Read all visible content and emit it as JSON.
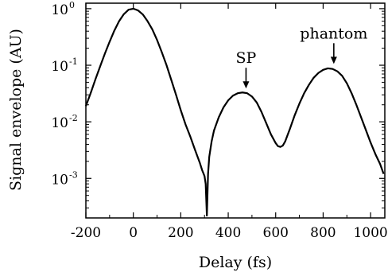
{
  "chart_data": {
    "type": "line",
    "xlabel": "Delay (fs)",
    "ylabel": "Signal envelope (AU)",
    "xlim": [
      -200,
      1060
    ],
    "ylim": [
      0.0002,
      1.25
    ],
    "yscale": "log",
    "grid": false,
    "legend": "none",
    "line_color": "#000000",
    "x_ticks": [
      {
        "value": -200,
        "label": "-200"
      },
      {
        "value": 0,
        "label": "0"
      },
      {
        "value": 200,
        "label": "200"
      },
      {
        "value": 400,
        "label": "400"
      },
      {
        "value": 600,
        "label": "600"
      },
      {
        "value": 800,
        "label": "800"
      },
      {
        "value": 1000,
        "label": "1000"
      }
    ],
    "y_ticks": [
      {
        "value": 1,
        "base": "10",
        "exp": "0"
      },
      {
        "value": 0.1,
        "base": "10",
        "exp": "-1"
      },
      {
        "value": 0.01,
        "base": "10",
        "exp": "-2"
      },
      {
        "value": 0.001,
        "base": "10",
        "exp": "-3"
      }
    ],
    "annotations": [
      {
        "text": "SP",
        "x": 475,
        "y": 0.032
      },
      {
        "text": "phantom",
        "x": 845,
        "y": 0.087
      }
    ],
    "series": [
      {
        "x": [
          -200,
          -180,
          -160,
          -140,
          -120,
          -100,
          -80,
          -60,
          -40,
          -20,
          0,
          20,
          40,
          60,
          80,
          100,
          120,
          140,
          160,
          180,
          200,
          220,
          240,
          260,
          280,
          290,
          300,
          305,
          310,
          315,
          320,
          330,
          340,
          360,
          380,
          400,
          420,
          440,
          460,
          480,
          500,
          520,
          540,
          560,
          580,
          600,
          610,
          620,
          630,
          640,
          660,
          680,
          700,
          720,
          740,
          760,
          780,
          800,
          820,
          840,
          860,
          880,
          900,
          920,
          940,
          960,
          980,
          1000,
          1020,
          1040,
          1055
        ],
        "y": [
          0.019,
          0.032,
          0.056,
          0.095,
          0.16,
          0.26,
          0.41,
          0.6,
          0.8,
          0.96,
          1.0,
          0.93,
          0.79,
          0.6,
          0.43,
          0.28,
          0.17,
          0.1,
          0.055,
          0.03,
          0.016,
          0.009,
          0.0055,
          0.0032,
          0.0019,
          0.0014,
          0.0011,
          0.0008,
          0.00022,
          0.0012,
          0.0024,
          0.0045,
          0.007,
          0.012,
          0.018,
          0.024,
          0.029,
          0.032,
          0.033,
          0.032,
          0.028,
          0.022,
          0.015,
          0.0095,
          0.006,
          0.0042,
          0.0037,
          0.0036,
          0.0038,
          0.0045,
          0.0075,
          0.013,
          0.021,
          0.032,
          0.045,
          0.06,
          0.073,
          0.083,
          0.088,
          0.086,
          0.078,
          0.065,
          0.048,
          0.032,
          0.02,
          0.012,
          0.0072,
          0.0043,
          0.0027,
          0.0018,
          0.0012
        ]
      }
    ]
  }
}
